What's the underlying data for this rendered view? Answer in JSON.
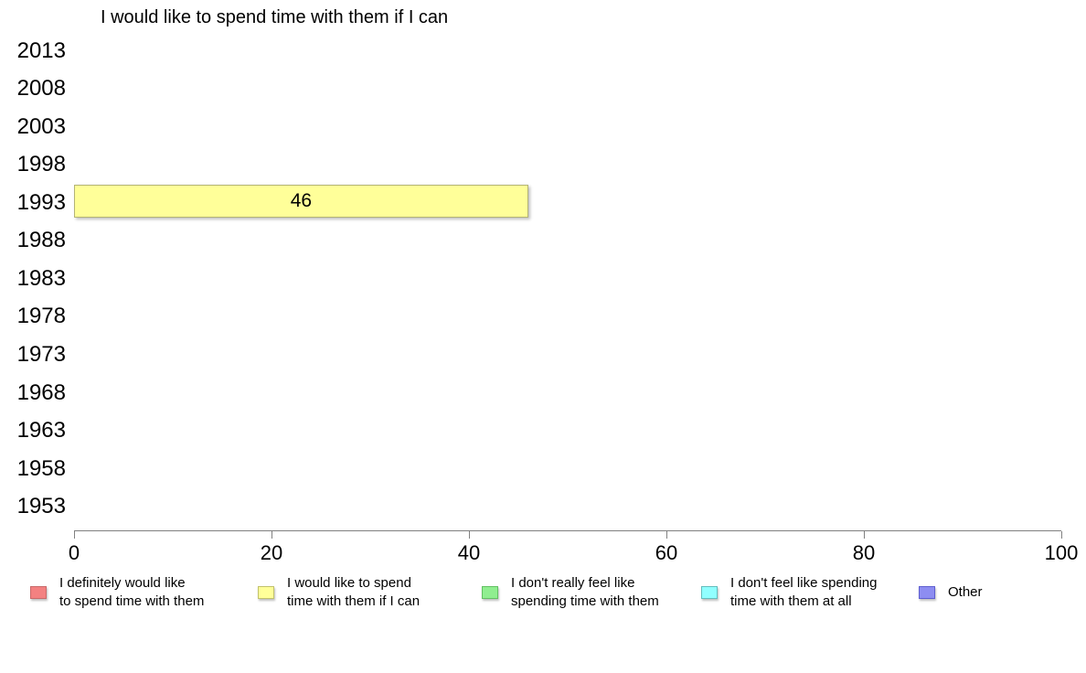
{
  "chart_data": {
    "type": "bar",
    "orientation": "horizontal",
    "title": "I would like to spend time with them if I can",
    "categories": [
      "2013",
      "2008",
      "2003",
      "1998",
      "1993",
      "1988",
      "1983",
      "1978",
      "1973",
      "1968",
      "1963",
      "1958",
      "1953"
    ],
    "series": [
      {
        "name": "I would like to spend time with them if I can",
        "color": "#ffff99",
        "border_color": "#b3b376",
        "values": [
          null,
          null,
          null,
          null,
          46,
          null,
          null,
          null,
          null,
          null,
          null,
          null,
          null
        ]
      }
    ],
    "bar": {
      "category": "1993",
      "value": 46,
      "label": "46"
    },
    "xlim": [
      0,
      100
    ],
    "x_ticks": [
      "0",
      "20",
      "40",
      "60",
      "80",
      "100"
    ],
    "grid": false,
    "legend_position": "bottom",
    "legend": [
      {
        "label": "I definitely would like\nto spend time with them",
        "fill": "#f38181",
        "border": "#c96a6a"
      },
      {
        "label": "I would like to spend\ntime with them if I can",
        "fill": "#ffff99",
        "border": "#c1c16c"
      },
      {
        "label": "I don't really feel like\nspending time with them",
        "fill": "#90ee90",
        "border": "#63c063"
      },
      {
        "label": "I don't feel like spending\ntime with them at all",
        "fill": "#91ffff",
        "border": "#64bdbd"
      },
      {
        "label": "Other",
        "fill": "#8d8df1",
        "border": "#5f5fd0"
      }
    ]
  }
}
